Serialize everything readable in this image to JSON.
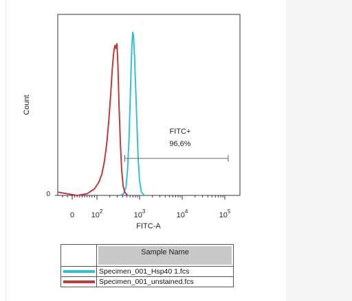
{
  "chart_data": {
    "type": "histogram",
    "ylabel": "Count",
    "xlabel": "FITC-A",
    "x_scale": "biexponential (logicle)",
    "x_ticks": [
      {
        "label": "0",
        "value": 0
      },
      {
        "label": "10",
        "sup": "2",
        "value": 100
      },
      {
        "label": "10",
        "sup": "3",
        "value": 1000
      },
      {
        "label": "10",
        "sup": "4",
        "value": 10000
      },
      {
        "label": "10",
        "sup": "5",
        "value": 100000
      }
    ],
    "y_ticks": [
      {
        "label": "0",
        "value": 0
      }
    ],
    "gate": {
      "name": "FITC+",
      "value": "96,6%",
      "x_range": [
        450,
        120000
      ]
    },
    "series": [
      {
        "name": "Specimen_001_Hsp40 1.fcs",
        "color": "#33bfd6",
        "points": [
          [
            350,
            0
          ],
          [
            420,
            0.01
          ],
          [
            480,
            0.05
          ],
          [
            520,
            0.15
          ],
          [
            560,
            0.32
          ],
          [
            600,
            0.56
          ],
          [
            630,
            0.76
          ],
          [
            660,
            0.92
          ],
          [
            690,
            1.0
          ],
          [
            720,
            0.98
          ],
          [
            760,
            0.86
          ],
          [
            810,
            0.66
          ],
          [
            870,
            0.42
          ],
          [
            930,
            0.22
          ],
          [
            1000,
            0.09
          ],
          [
            1100,
            0.02
          ],
          [
            1300,
            0
          ]
        ]
      },
      {
        "name": "Specimen_001_unstained.fcs",
        "color": "#c0393b",
        "points": [
          [
            -30,
            0.02
          ],
          [
            20,
            0.0
          ],
          [
            60,
            0.01
          ],
          [
            90,
            0.04
          ],
          [
            110,
            0.08
          ],
          [
            130,
            0.13
          ],
          [
            150,
            0.21
          ],
          [
            170,
            0.32
          ],
          [
            190,
            0.46
          ],
          [
            210,
            0.62
          ],
          [
            230,
            0.78
          ],
          [
            250,
            0.89
          ],
          [
            265,
            0.92
          ],
          [
            280,
            0.9
          ],
          [
            295,
            0.93
          ],
          [
            310,
            0.8
          ],
          [
            330,
            0.55
          ],
          [
            355,
            0.32
          ],
          [
            380,
            0.16
          ],
          [
            410,
            0.06
          ],
          [
            450,
            0.02
          ],
          [
            520,
            0
          ]
        ]
      }
    ]
  },
  "legend": {
    "title": "Sample Name",
    "items": [
      {
        "label": "Specimen_001_Hsp40 1.fcs",
        "color": "#33bfd6"
      },
      {
        "label": "Specimen_001_unstained.fcs",
        "color": "#c0393b"
      }
    ]
  }
}
